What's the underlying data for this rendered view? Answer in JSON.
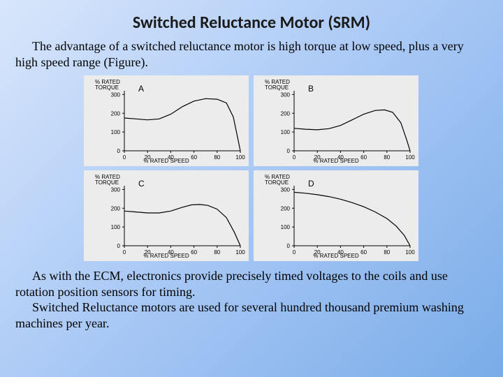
{
  "title": "Switched Reluctance Motor (SRM)",
  "para1": "The advantage of a switched reluctance motor is high torque at low speed, plus a very high speed range (Figure).",
  "para2": "As with the ECM, electronics provide precisely timed voltages to the coils and use rotation position sensors for timing.",
  "para3": "Switched Reluctance motors are used for several hundred thousand premium washing machines per year.",
  "figure": {
    "background_panel": "#ececec",
    "line_color": "#000000",
    "axis_color": "#000000",
    "font_family": "Arial",
    "y_label": "% RATED\nTORQUE",
    "x_label": "% RATED SPEED",
    "x_ticks": [
      0,
      20,
      40,
      60,
      80,
      100
    ],
    "y_ticks": [
      0,
      100,
      200,
      300
    ],
    "xlim": [
      0,
      100
    ],
    "ylim": [
      0,
      320
    ],
    "line_width": 1.2,
    "tick_fontsize": 8,
    "label_fontsize": 8,
    "panels": [
      {
        "letter": "A",
        "curve": [
          {
            "x": 0,
            "y": 175
          },
          {
            "x": 10,
            "y": 170
          },
          {
            "x": 20,
            "y": 165
          },
          {
            "x": 30,
            "y": 170
          },
          {
            "x": 40,
            "y": 195
          },
          {
            "x": 50,
            "y": 235
          },
          {
            "x": 60,
            "y": 265
          },
          {
            "x": 70,
            "y": 278
          },
          {
            "x": 80,
            "y": 275
          },
          {
            "x": 88,
            "y": 255
          },
          {
            "x": 94,
            "y": 180
          },
          {
            "x": 98,
            "y": 60
          },
          {
            "x": 100,
            "y": 0
          }
        ]
      },
      {
        "letter": "B",
        "curve": [
          {
            "x": 0,
            "y": 120
          },
          {
            "x": 10,
            "y": 115
          },
          {
            "x": 20,
            "y": 112
          },
          {
            "x": 30,
            "y": 118
          },
          {
            "x": 40,
            "y": 135
          },
          {
            "x": 50,
            "y": 165
          },
          {
            "x": 60,
            "y": 195
          },
          {
            "x": 70,
            "y": 215
          },
          {
            "x": 78,
            "y": 218
          },
          {
            "x": 85,
            "y": 205
          },
          {
            "x": 92,
            "y": 150
          },
          {
            "x": 97,
            "y": 60
          },
          {
            "x": 100,
            "y": 0
          }
        ]
      },
      {
        "letter": "C",
        "curve": [
          {
            "x": 0,
            "y": 185
          },
          {
            "x": 10,
            "y": 180
          },
          {
            "x": 20,
            "y": 175
          },
          {
            "x": 30,
            "y": 175
          },
          {
            "x": 40,
            "y": 185
          },
          {
            "x": 50,
            "y": 205
          },
          {
            "x": 58,
            "y": 218
          },
          {
            "x": 65,
            "y": 220
          },
          {
            "x": 72,
            "y": 215
          },
          {
            "x": 80,
            "y": 195
          },
          {
            "x": 88,
            "y": 150
          },
          {
            "x": 95,
            "y": 70
          },
          {
            "x": 100,
            "y": 0
          }
        ]
      },
      {
        "letter": "D",
        "curve": [
          {
            "x": 0,
            "y": 285
          },
          {
            "x": 10,
            "y": 280
          },
          {
            "x": 20,
            "y": 272
          },
          {
            "x": 30,
            "y": 262
          },
          {
            "x": 40,
            "y": 248
          },
          {
            "x": 50,
            "y": 230
          },
          {
            "x": 60,
            "y": 208
          },
          {
            "x": 70,
            "y": 180
          },
          {
            "x": 80,
            "y": 145
          },
          {
            "x": 88,
            "y": 105
          },
          {
            "x": 95,
            "y": 55
          },
          {
            "x": 100,
            "y": 0
          }
        ]
      }
    ]
  }
}
